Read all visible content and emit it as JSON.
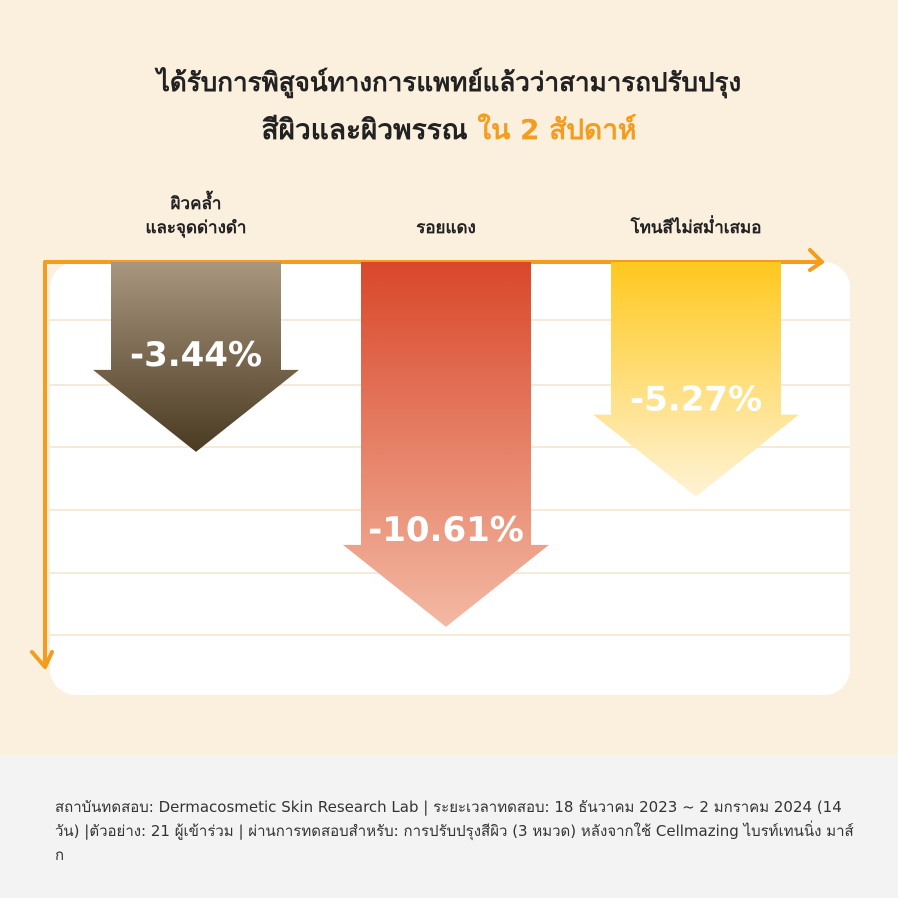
{
  "chart_data": {
    "type": "bar",
    "title": "ได้รับการพิสูจน์ทางการแพทย์แล้วว่าสามารถปรับปรุง",
    "subtitle": "สีผิวและผิวพรรณ",
    "highlight": "ใน 2 สัปดาห์",
    "categories": [
      "ผิวคล้ำ\nและจุดด่างดำ",
      "รอยแดง",
      "โทนสีไม่สม่ำเสมอ"
    ],
    "values": [
      -3.44,
      -10.61,
      -5.27
    ],
    "value_labels": [
      "-3.44%",
      "-10.61%",
      "-5.27%"
    ],
    "colors": [
      "#4b3a22",
      "#d9472a",
      "#ffc81e"
    ],
    "note": "สถาบันทดสอบ: Dermacosmetic Skin Research Lab | ระยะเวลาทดสอบ: 18 ธันวาคม 2023 ~ 2 มกราคม 2024 (14 วัน) |ตัวอย่าง: 21 ผู้เข้าร่วม | ผ่านการทดสอบสำหรับ: การปรับปรุงสีผิว (3 หมวด) หลังจากใช้ Cellmazing ไบรท์เทนนิ่ง มาส์ก"
  }
}
